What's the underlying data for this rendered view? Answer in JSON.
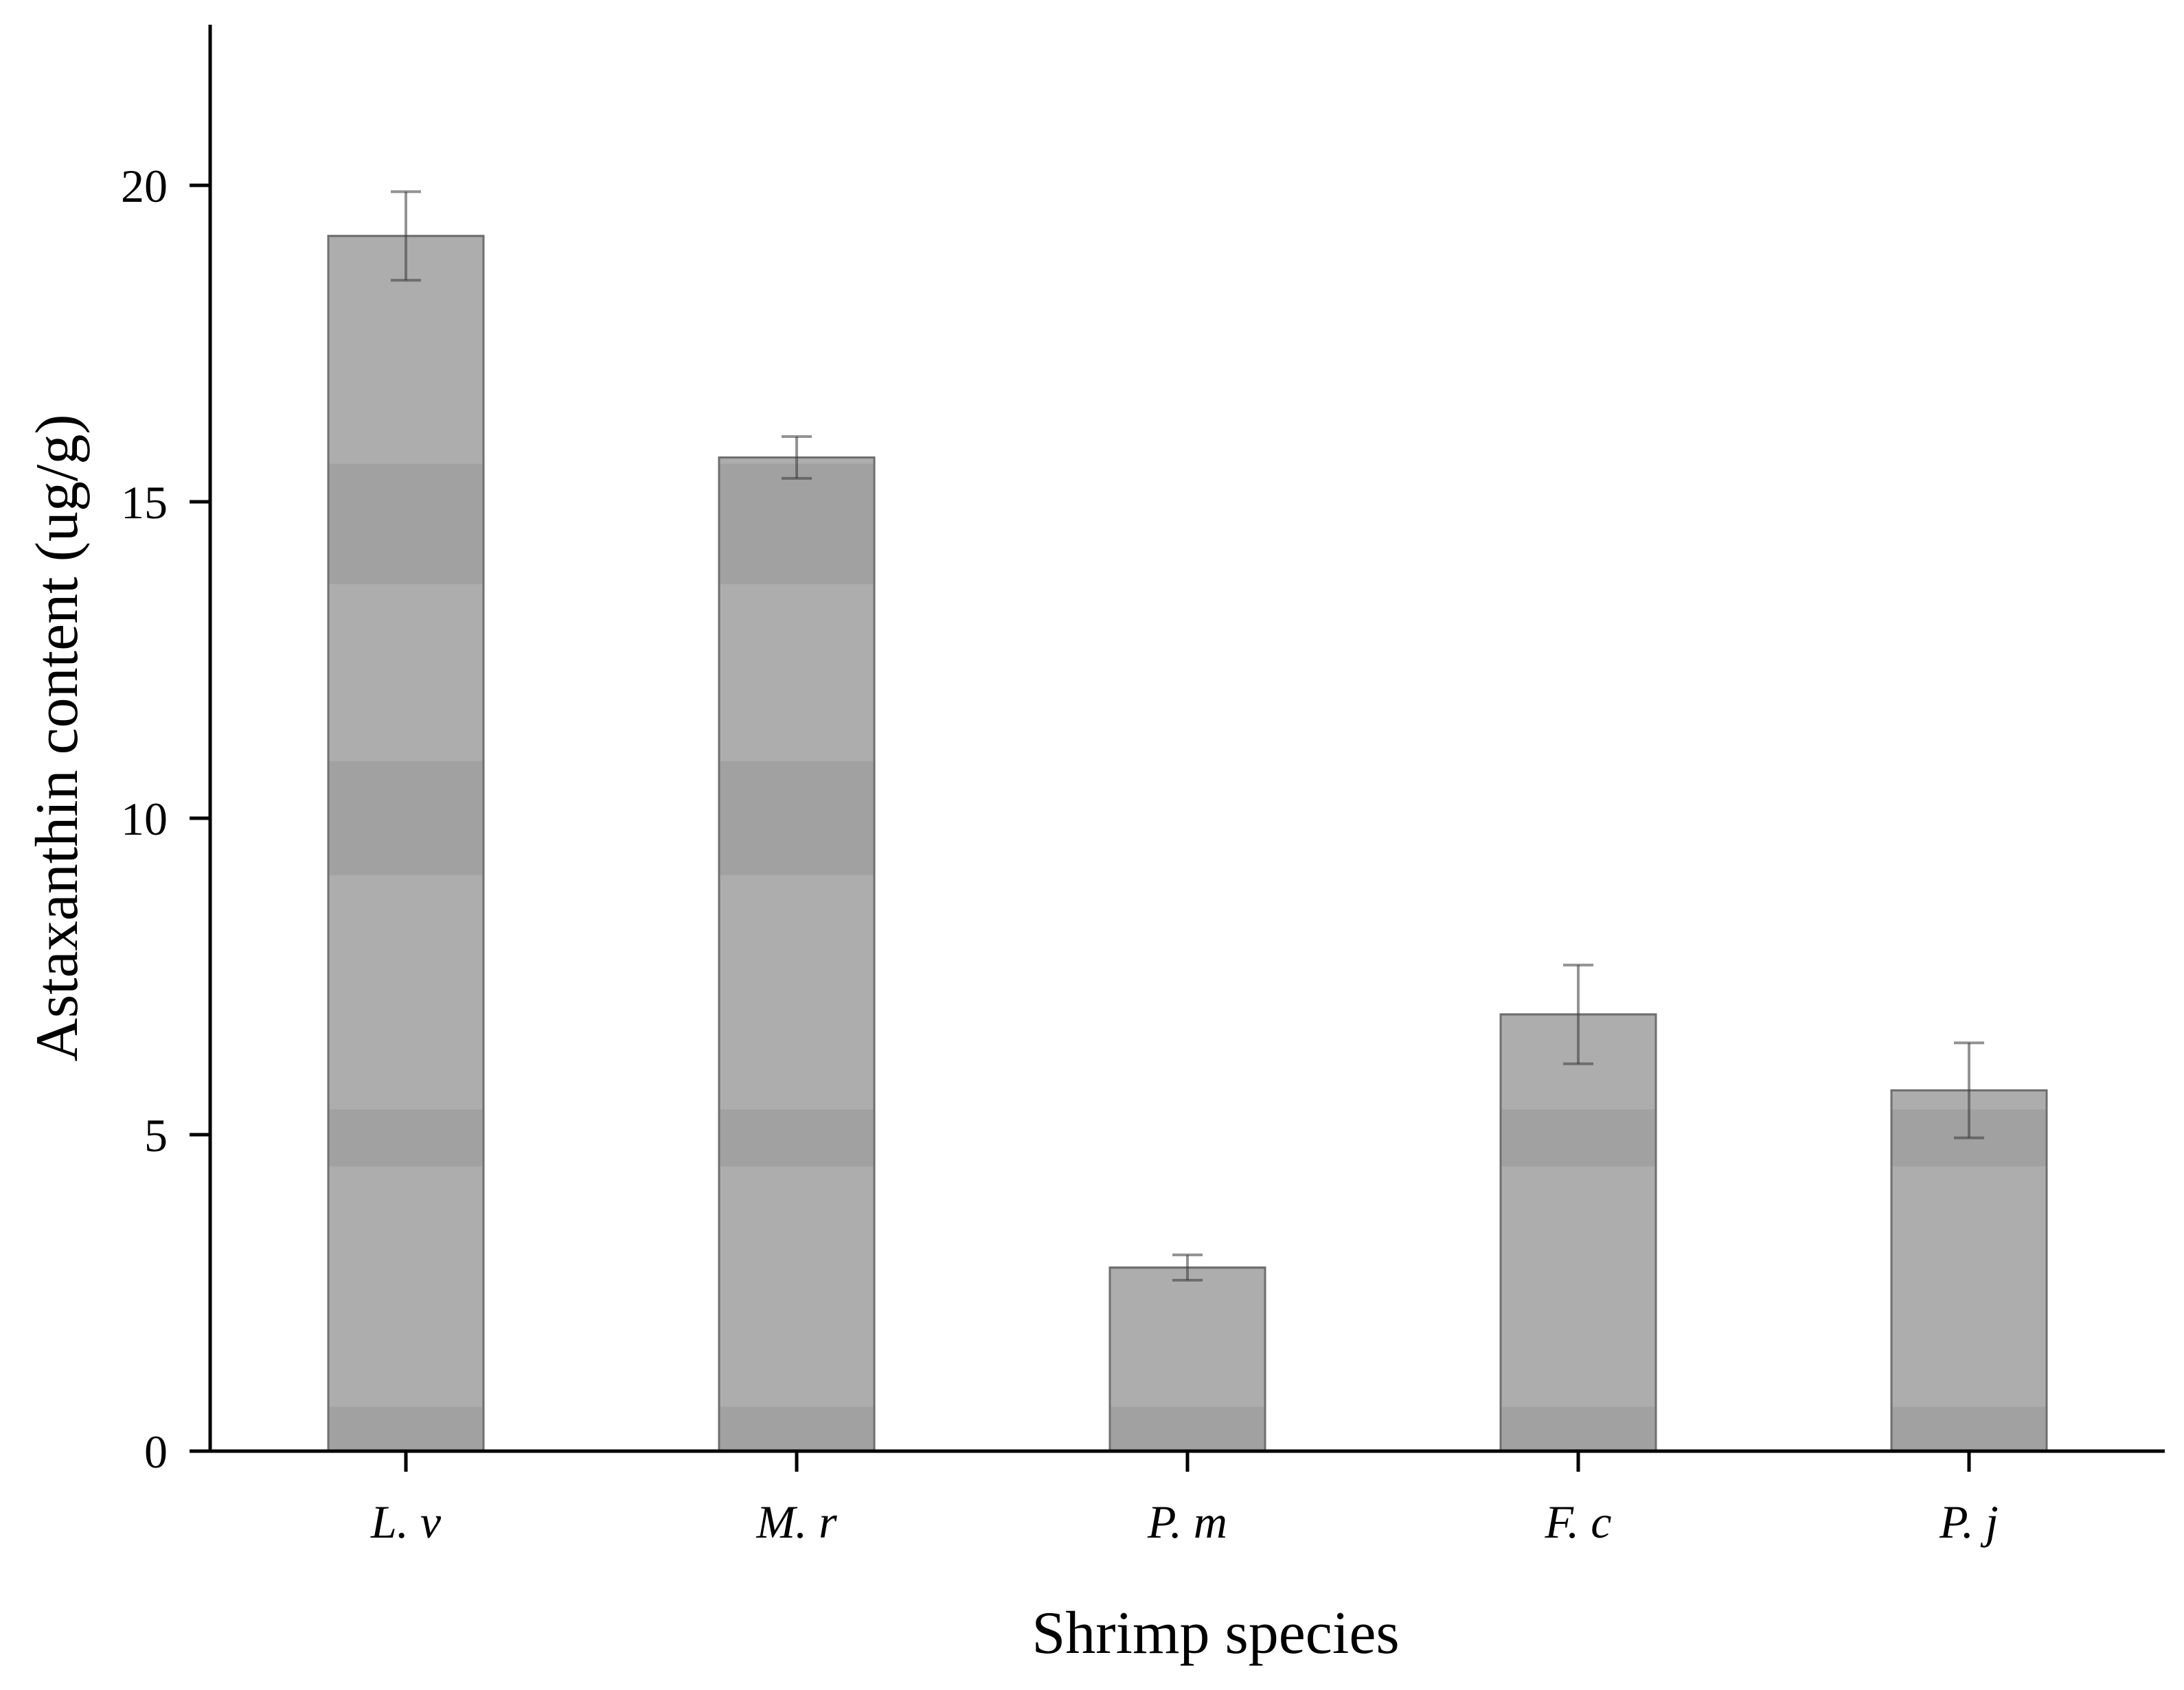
{
  "chart_data": {
    "type": "bar",
    "title": "",
    "xlabel": "Shrimp species",
    "ylabel": "Astaxanthin content (ug/g)",
    "categories": [
      "L. v",
      "M. r",
      "P. m",
      "F. c",
      "P. j"
    ],
    "values": [
      19.2,
      15.7,
      2.9,
      6.9,
      5.7
    ],
    "errors": [
      0.7,
      0.33,
      0.2,
      0.78,
      0.75
    ],
    "ylim": [
      0,
      22.5
    ],
    "yticks": [
      0,
      5,
      10,
      15,
      20
    ],
    "ytick_labels": [
      "0",
      "5",
      "10",
      "15",
      "20"
    ],
    "grid": false,
    "legend": "none",
    "colors": {
      "bar_fill": "#adadad",
      "bar_band": "#a1a1a1",
      "bar_edge": "#6f6f6f",
      "error_bar": "#3a3a3a",
      "axis": "#000000"
    }
  }
}
